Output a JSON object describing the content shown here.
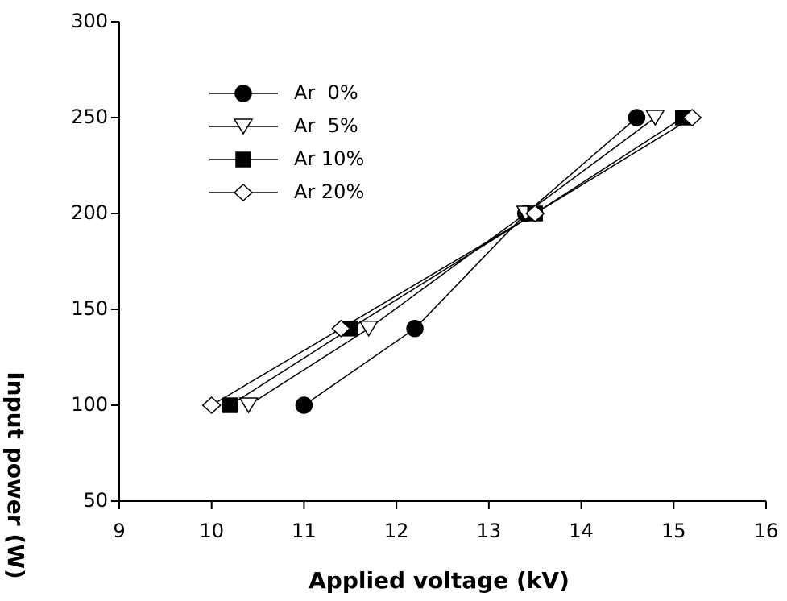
{
  "chart_data": {
    "type": "line",
    "x_label": "Applied voltage (kV)",
    "y_label": "Input power (W)",
    "xlim": [
      9,
      16
    ],
    "xticks": [
      9,
      10,
      11,
      12,
      13,
      14,
      15,
      16
    ],
    "ylim": [
      50,
      300
    ],
    "yticks": [
      50,
      100,
      150,
      200,
      250,
      300
    ],
    "legend": "upper left",
    "series": [
      {
        "name": "Ar  0%",
        "marker": "circle",
        "filled": true,
        "color": "#000000",
        "x": [
          11,
          12.2,
          13.4,
          14.6
        ],
        "values": [
          100,
          140,
          200,
          250
        ]
      },
      {
        "name": "Ar  5%",
        "marker": "triangle-down",
        "filled": false,
        "color": "#000000",
        "x": [
          10.4,
          11.7,
          13.4,
          14.8
        ],
        "values": [
          100,
          140,
          200,
          250
        ]
      },
      {
        "name": "Ar 10%",
        "marker": "square",
        "filled": true,
        "color": "#000000",
        "x": [
          10.2,
          11.5,
          13.5,
          15.1
        ],
        "values": [
          100,
          140,
          200,
          250
        ]
      },
      {
        "name": "Ar 20%",
        "marker": "diamond",
        "filled": false,
        "color": "#000000",
        "x": [
          10,
          11.4,
          13.5,
          15.2
        ],
        "values": [
          100,
          140,
          200,
          250
        ]
      }
    ]
  }
}
